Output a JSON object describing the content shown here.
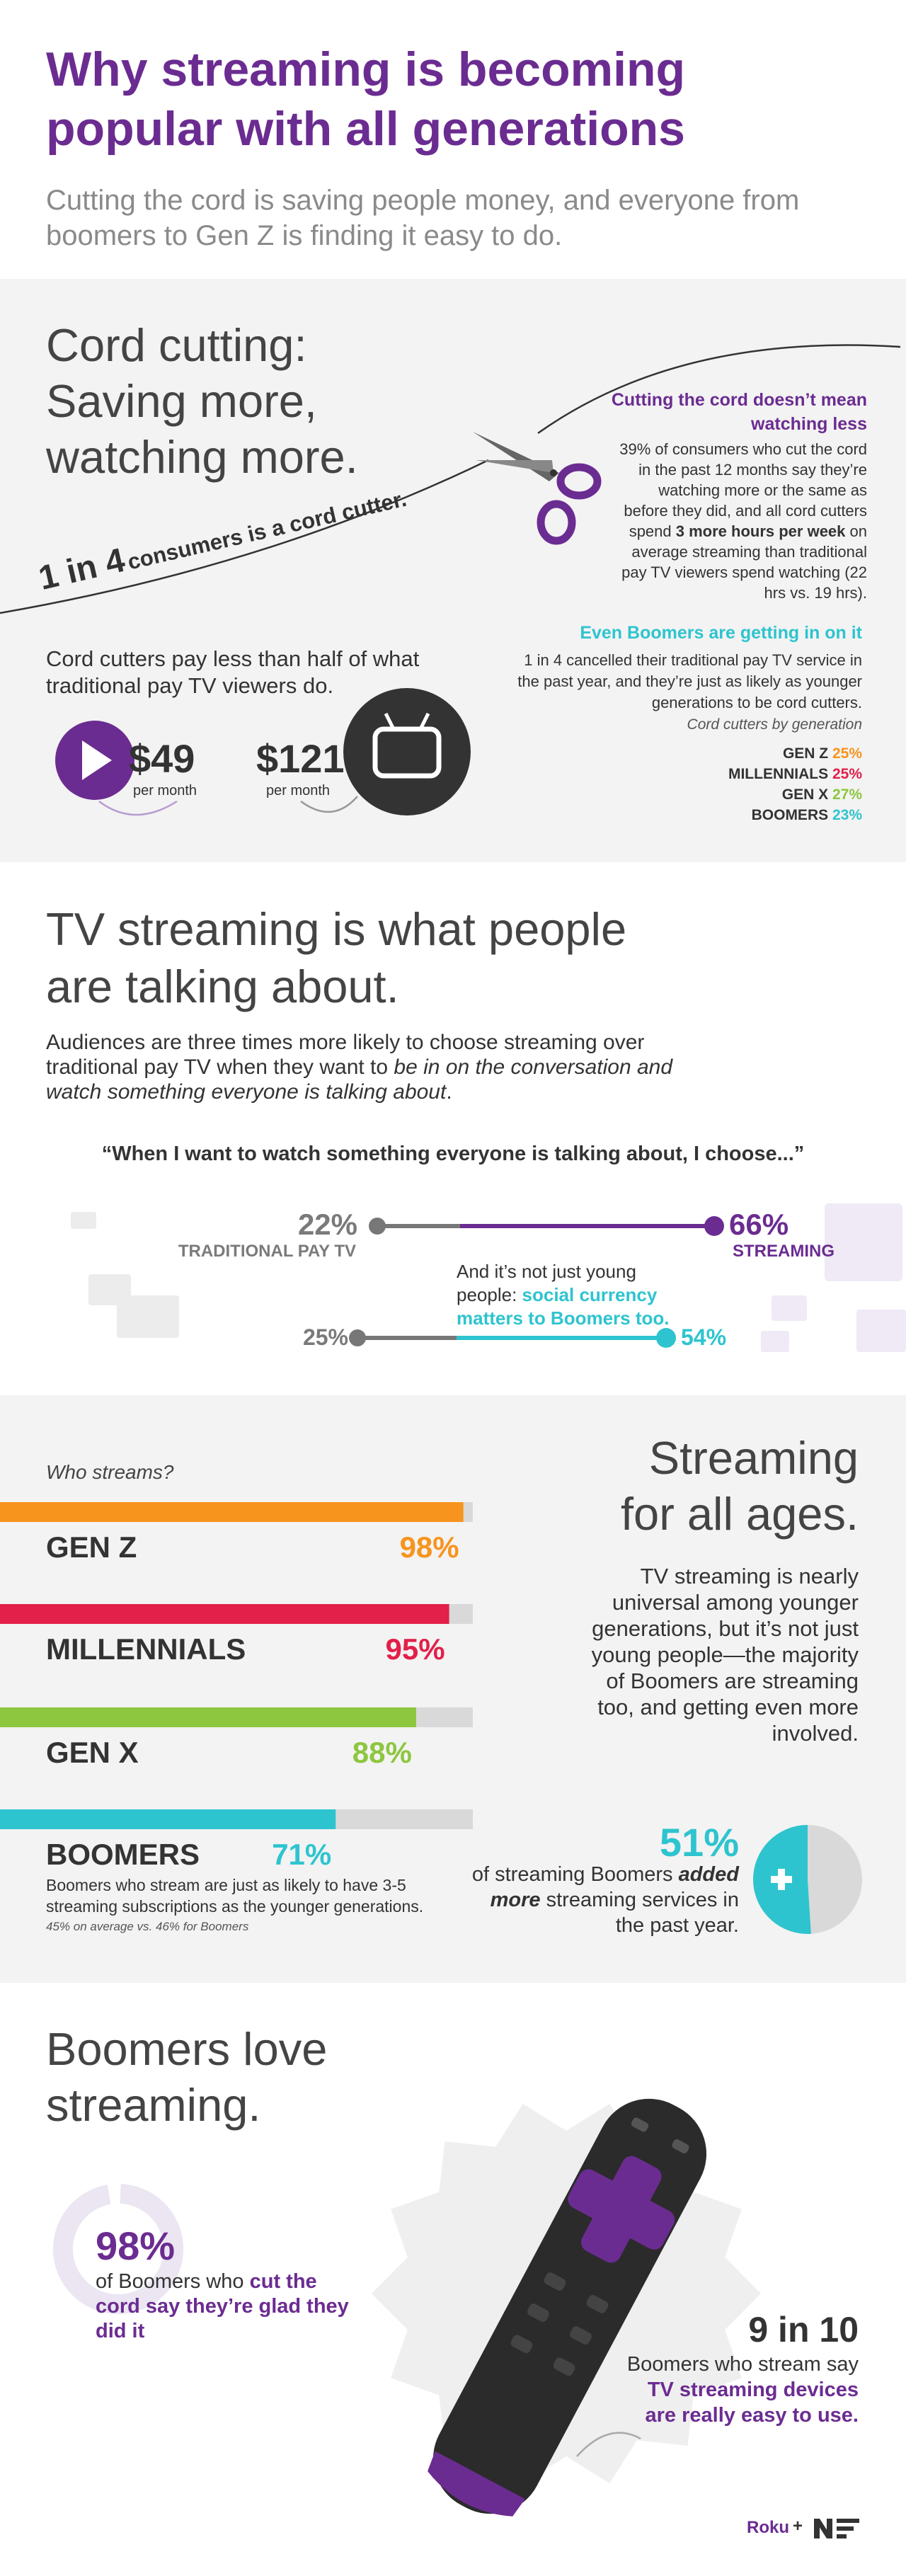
{
  "header": {
    "title": "Why streaming is becoming popular with all generations",
    "subtitle": "Cutting the cord is saving people money, and everyone from boomers to Gen Z is finding it easy to do."
  },
  "cord_cutting": {
    "heading": [
      "Cord cutting:",
      "Saving more,",
      "watching more."
    ],
    "stat": {
      "number": "1 in 4",
      "text": "consumers is a cord cutter."
    },
    "watching_less": {
      "title": "Cutting the cord doesn’t mean watching less",
      "body": [
        "39% of consumers who cut the cord in the past 12 months say they’re watching more or the same as before they did, and all cord cutters spend ",
        "3 more hours per week",
        " on average streaming than traditional pay TV viewers spend watching (22 hrs vs. 19 hrs)."
      ]
    },
    "price": {
      "text": "Cord cutters pay less than half of what traditional pay TV viewers do.",
      "cord_cutter": {
        "amount": "$49",
        "unit": "per month"
      },
      "pay_tv": {
        "amount": "$121",
        "unit": "per month"
      }
    },
    "boomers": {
      "title": "Even Boomers are getting in on it",
      "body": "1 in 4 cancelled their traditional pay TV service in the past year, and they’re just as likely as younger generations to be cord cutters.",
      "caption": "Cord cutters by generation",
      "generations": [
        {
          "name": "GEN Z",
          "value": "25%"
        },
        {
          "name": "MILLENNIALS",
          "value": "25%"
        },
        {
          "name": "GEN X",
          "value": "27%"
        },
        {
          "name": "BOOMERS",
          "value": "23%"
        }
      ]
    }
  },
  "talking": {
    "heading": [
      "TV streaming is what people",
      "are talking about."
    ],
    "body": [
      "Audiences are three times more likely to choose streaming over traditional pay TV when they want to ",
      "be in on the conversation and watch something everyone is talking about",
      "."
    ],
    "quote": "“When I want to watch something everyone is talking about, I choose...”",
    "all": {
      "traditional": "22%",
      "traditional_label": "TRADITIONAL PAY TV",
      "streaming": "66%",
      "streaming_label": "STREAMING"
    },
    "note": [
      "And it’s not just young people: ",
      "social currency matters to Boomers too."
    ],
    "boomers": {
      "traditional": "25%",
      "streaming": "54%"
    }
  },
  "who_streams": {
    "title": "Who streams?",
    "categories": [
      "GEN Z",
      "MILLENNIALS",
      "GEN X",
      "BOOMERS"
    ],
    "values": [
      98,
      95,
      88,
      71
    ],
    "value_labels": [
      "98%",
      "95%",
      "88%",
      "71%"
    ],
    "colors": [
      "#f7941d",
      "#e2204a",
      "#8dc63f",
      "#2ec4cf"
    ],
    "xlim": [
      0,
      100
    ],
    "note": "Boomers who stream are just as likely to have 3-5 streaming subscriptions as the younger generations.",
    "footnote": "45% on average vs. 46% for Boomers"
  },
  "all_ages": {
    "heading": [
      "Streaming",
      "for all ages."
    ],
    "body": "TV streaming is nearly universal among younger generations, but it’s not just young people—the majority of Boomers are streaming too, and getting even more involved."
  },
  "boomers_added": {
    "value": 51,
    "label": "51%",
    "text": [
      "of streaming Boomers ",
      "added more",
      " streaming services in the past year."
    ]
  },
  "love": {
    "heading": [
      "Boomers love",
      "streaming."
    ],
    "glad": {
      "value": 98,
      "label": "98%",
      "text": [
        "of Boomers who ",
        "cut the cord say they’re glad they did it"
      ]
    },
    "easy": {
      "number": "9 in 10",
      "text": [
        "Boomers who stream say ",
        "TV streaming devices are really easy to use."
      ]
    }
  },
  "footer": {
    "brand": "Roku",
    "plus": "+"
  }
}
